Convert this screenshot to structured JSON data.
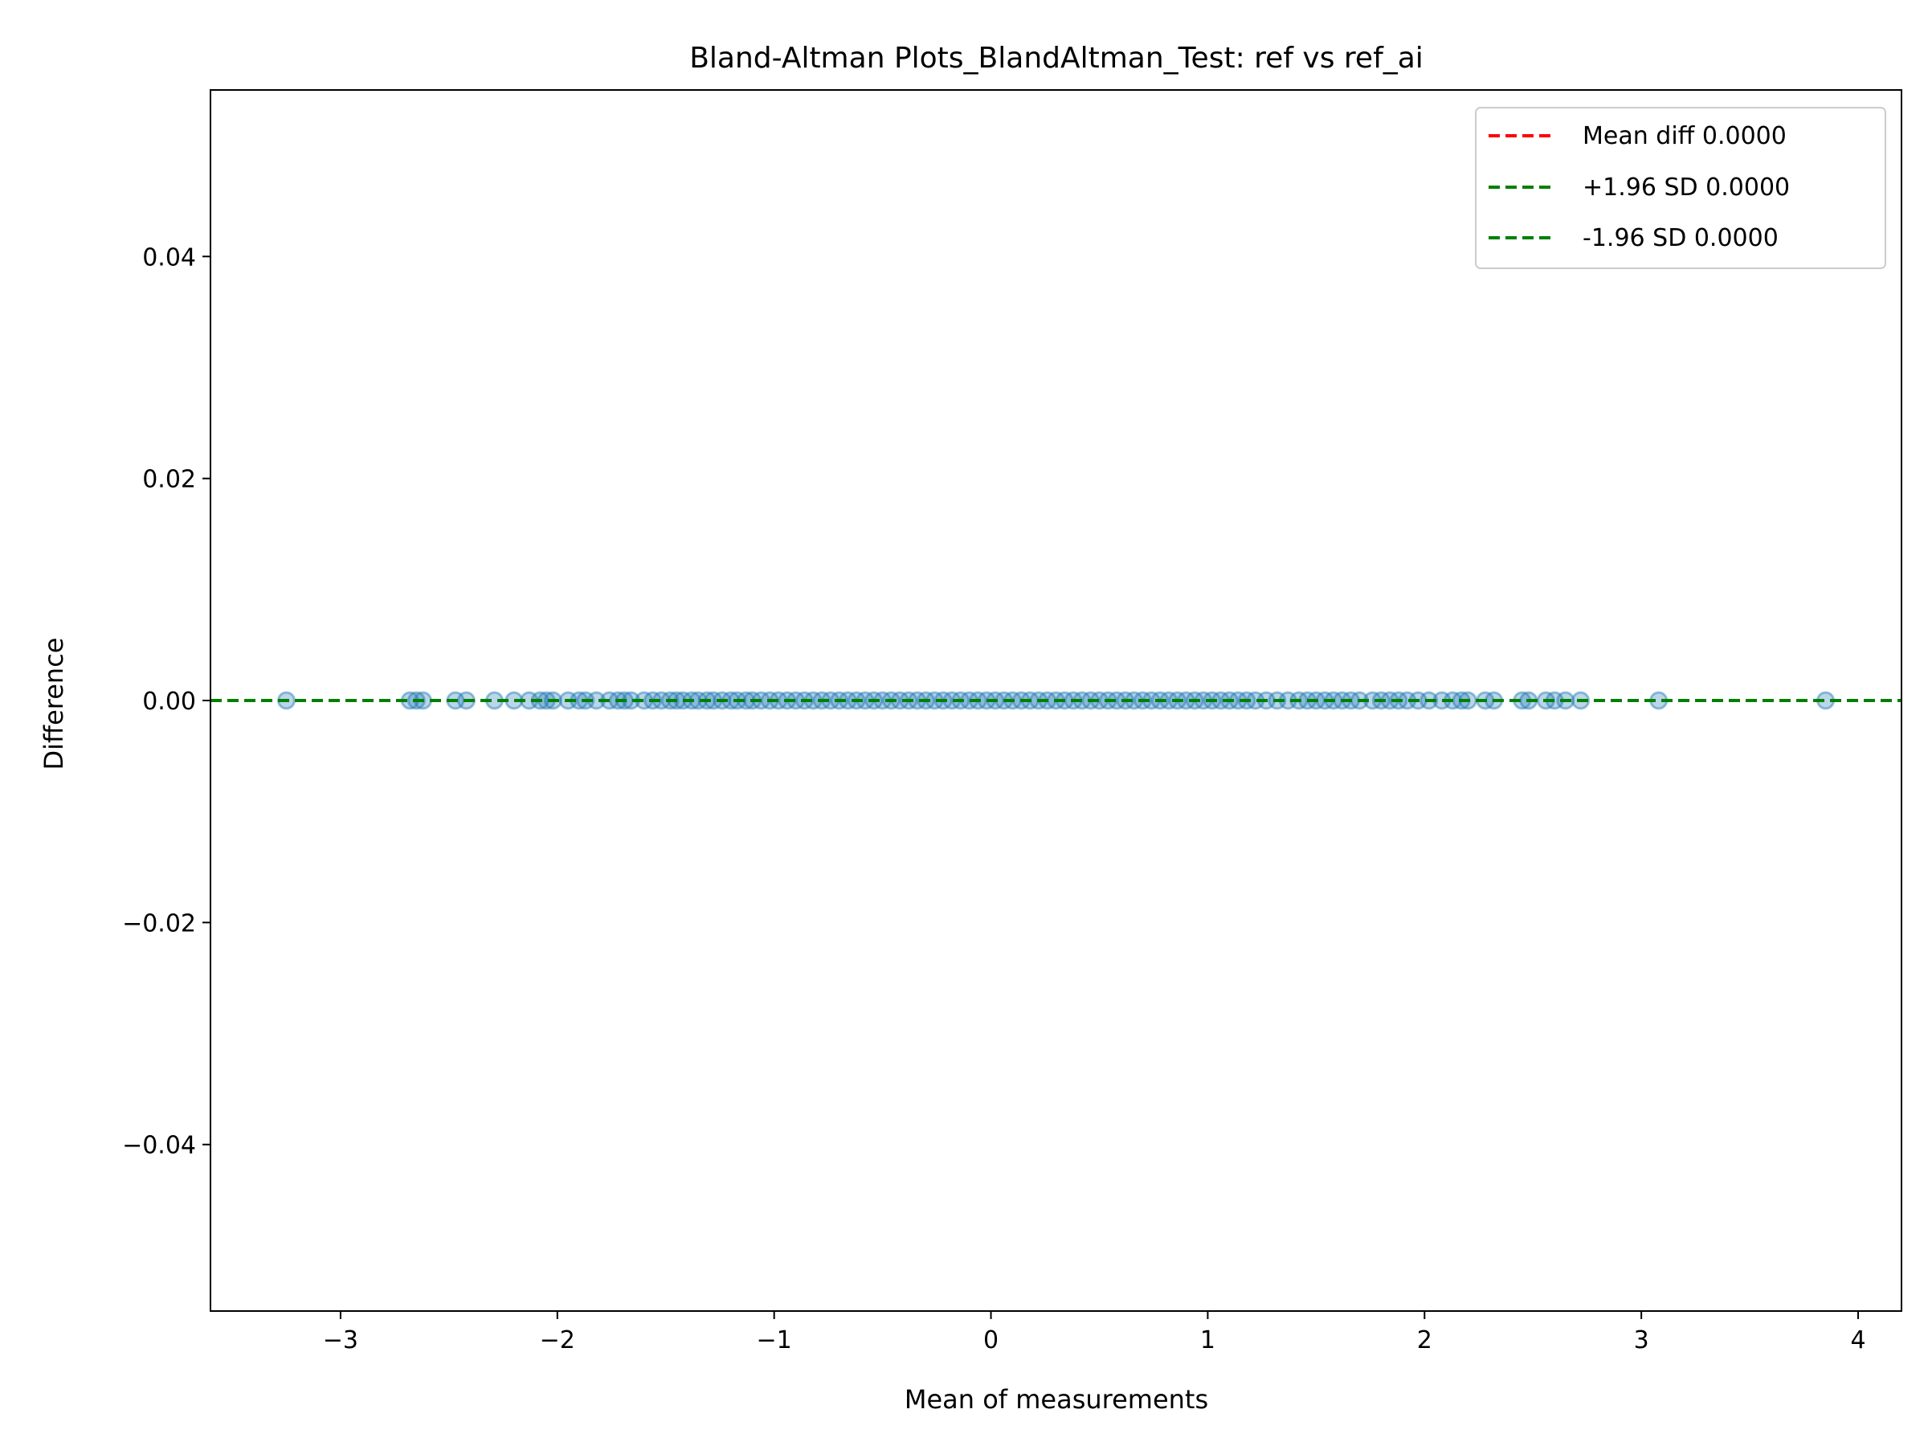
{
  "chart_data": {
    "type": "scatter",
    "title": "Bland-Altman Plots_BlandAltman_Test: ref vs ref_ai",
    "xlabel": "Mean of measurements",
    "ylabel": "Difference",
    "xlim": [
      -3.6,
      4.2
    ],
    "ylim": [
      -0.055,
      0.055
    ],
    "x_ticks": [
      {
        "value": -3,
        "label": "−3"
      },
      {
        "value": -2,
        "label": "−2"
      },
      {
        "value": -1,
        "label": "−1"
      },
      {
        "value": 0,
        "label": "0"
      },
      {
        "value": 1,
        "label": "1"
      },
      {
        "value": 2,
        "label": "2"
      },
      {
        "value": 3,
        "label": "3"
      },
      {
        "value": 4,
        "label": "4"
      }
    ],
    "y_ticks": [
      {
        "value": -0.04,
        "label": "−0.04"
      },
      {
        "value": -0.02,
        "label": "−0.02"
      },
      {
        "value": 0.0,
        "label": "0.00"
      },
      {
        "value": 0.02,
        "label": "0.02"
      },
      {
        "value": 0.04,
        "label": "0.04"
      }
    ],
    "grid": false,
    "legend_position": "top-right",
    "point_color": "#1f77b4",
    "series": [
      {
        "x": [
          -3.25,
          -2.68,
          -2.65,
          -2.62,
          -2.47,
          -2.42,
          -2.29,
          -2.2,
          -2.13,
          -2.08,
          -2.05,
          -2.02,
          -1.95,
          -1.9,
          -1.87,
          -1.82,
          -1.76,
          -1.72,
          -1.69,
          -1.66,
          -1.6,
          -1.56,
          -1.52,
          -1.48,
          -1.45,
          -1.42,
          -1.38,
          -1.35,
          -1.31,
          -1.28,
          -1.24,
          -1.2,
          -1.17,
          -1.13,
          -1.1,
          -1.06,
          -1.02,
          -0.98,
          -0.94,
          -0.9,
          -0.86,
          -0.82,
          -0.78,
          -0.74,
          -0.7,
          -0.66,
          -0.62,
          -0.58,
          -0.54,
          -0.5,
          -0.46,
          -0.42,
          -0.38,
          -0.34,
          -0.3,
          -0.26,
          -0.22,
          -0.18,
          -0.14,
          -0.1,
          -0.06,
          -0.02,
          0.02,
          0.06,
          0.1,
          0.14,
          0.18,
          0.22,
          0.26,
          0.3,
          0.34,
          0.38,
          0.42,
          0.46,
          0.5,
          0.54,
          0.58,
          0.62,
          0.66,
          0.7,
          0.74,
          0.78,
          0.82,
          0.86,
          0.9,
          0.94,
          0.98,
          1.02,
          1.06,
          1.1,
          1.14,
          1.18,
          1.22,
          1.27,
          1.32,
          1.37,
          1.42,
          1.46,
          1.5,
          1.54,
          1.58,
          1.62,
          1.66,
          1.7,
          1.76,
          1.8,
          1.84,
          1.88,
          1.92,
          1.97,
          2.02,
          2.08,
          2.13,
          2.17,
          2.2,
          2.28,
          2.32,
          2.45,
          2.48,
          2.56,
          2.6,
          2.65,
          2.72,
          3.08,
          3.85
        ],
        "y": [
          0,
          0,
          0,
          0,
          0,
          0,
          0,
          0,
          0,
          0,
          0,
          0,
          0,
          0,
          0,
          0,
          0,
          0,
          0,
          0,
          0,
          0,
          0,
          0,
          0,
          0,
          0,
          0,
          0,
          0,
          0,
          0,
          0,
          0,
          0,
          0,
          0,
          0,
          0,
          0,
          0,
          0,
          0,
          0,
          0,
          0,
          0,
          0,
          0,
          0,
          0,
          0,
          0,
          0,
          0,
          0,
          0,
          0,
          0,
          0,
          0,
          0,
          0,
          0,
          0,
          0,
          0,
          0,
          0,
          0,
          0,
          0,
          0,
          0,
          0,
          0,
          0,
          0,
          0,
          0,
          0,
          0,
          0,
          0,
          0,
          0,
          0,
          0,
          0,
          0,
          0,
          0,
          0,
          0,
          0,
          0,
          0,
          0,
          0,
          0,
          0,
          0,
          0,
          0,
          0,
          0,
          0,
          0,
          0,
          0,
          0,
          0,
          0,
          0,
          0,
          0,
          0,
          0,
          0,
          0,
          0,
          0,
          0,
          0,
          0
        ]
      }
    ],
    "reference_lines": [
      {
        "name": "Mean diff 0.0000",
        "value": 0.0,
        "color": "#ff0000",
        "style": "dashed"
      },
      {
        "name": "+1.96 SD 0.0000",
        "value": 0.0,
        "color": "#008000",
        "style": "dashed"
      },
      {
        "name": "-1.96 SD 0.0000",
        "value": 0.0,
        "color": "#008000",
        "style": "dashed"
      }
    ]
  }
}
